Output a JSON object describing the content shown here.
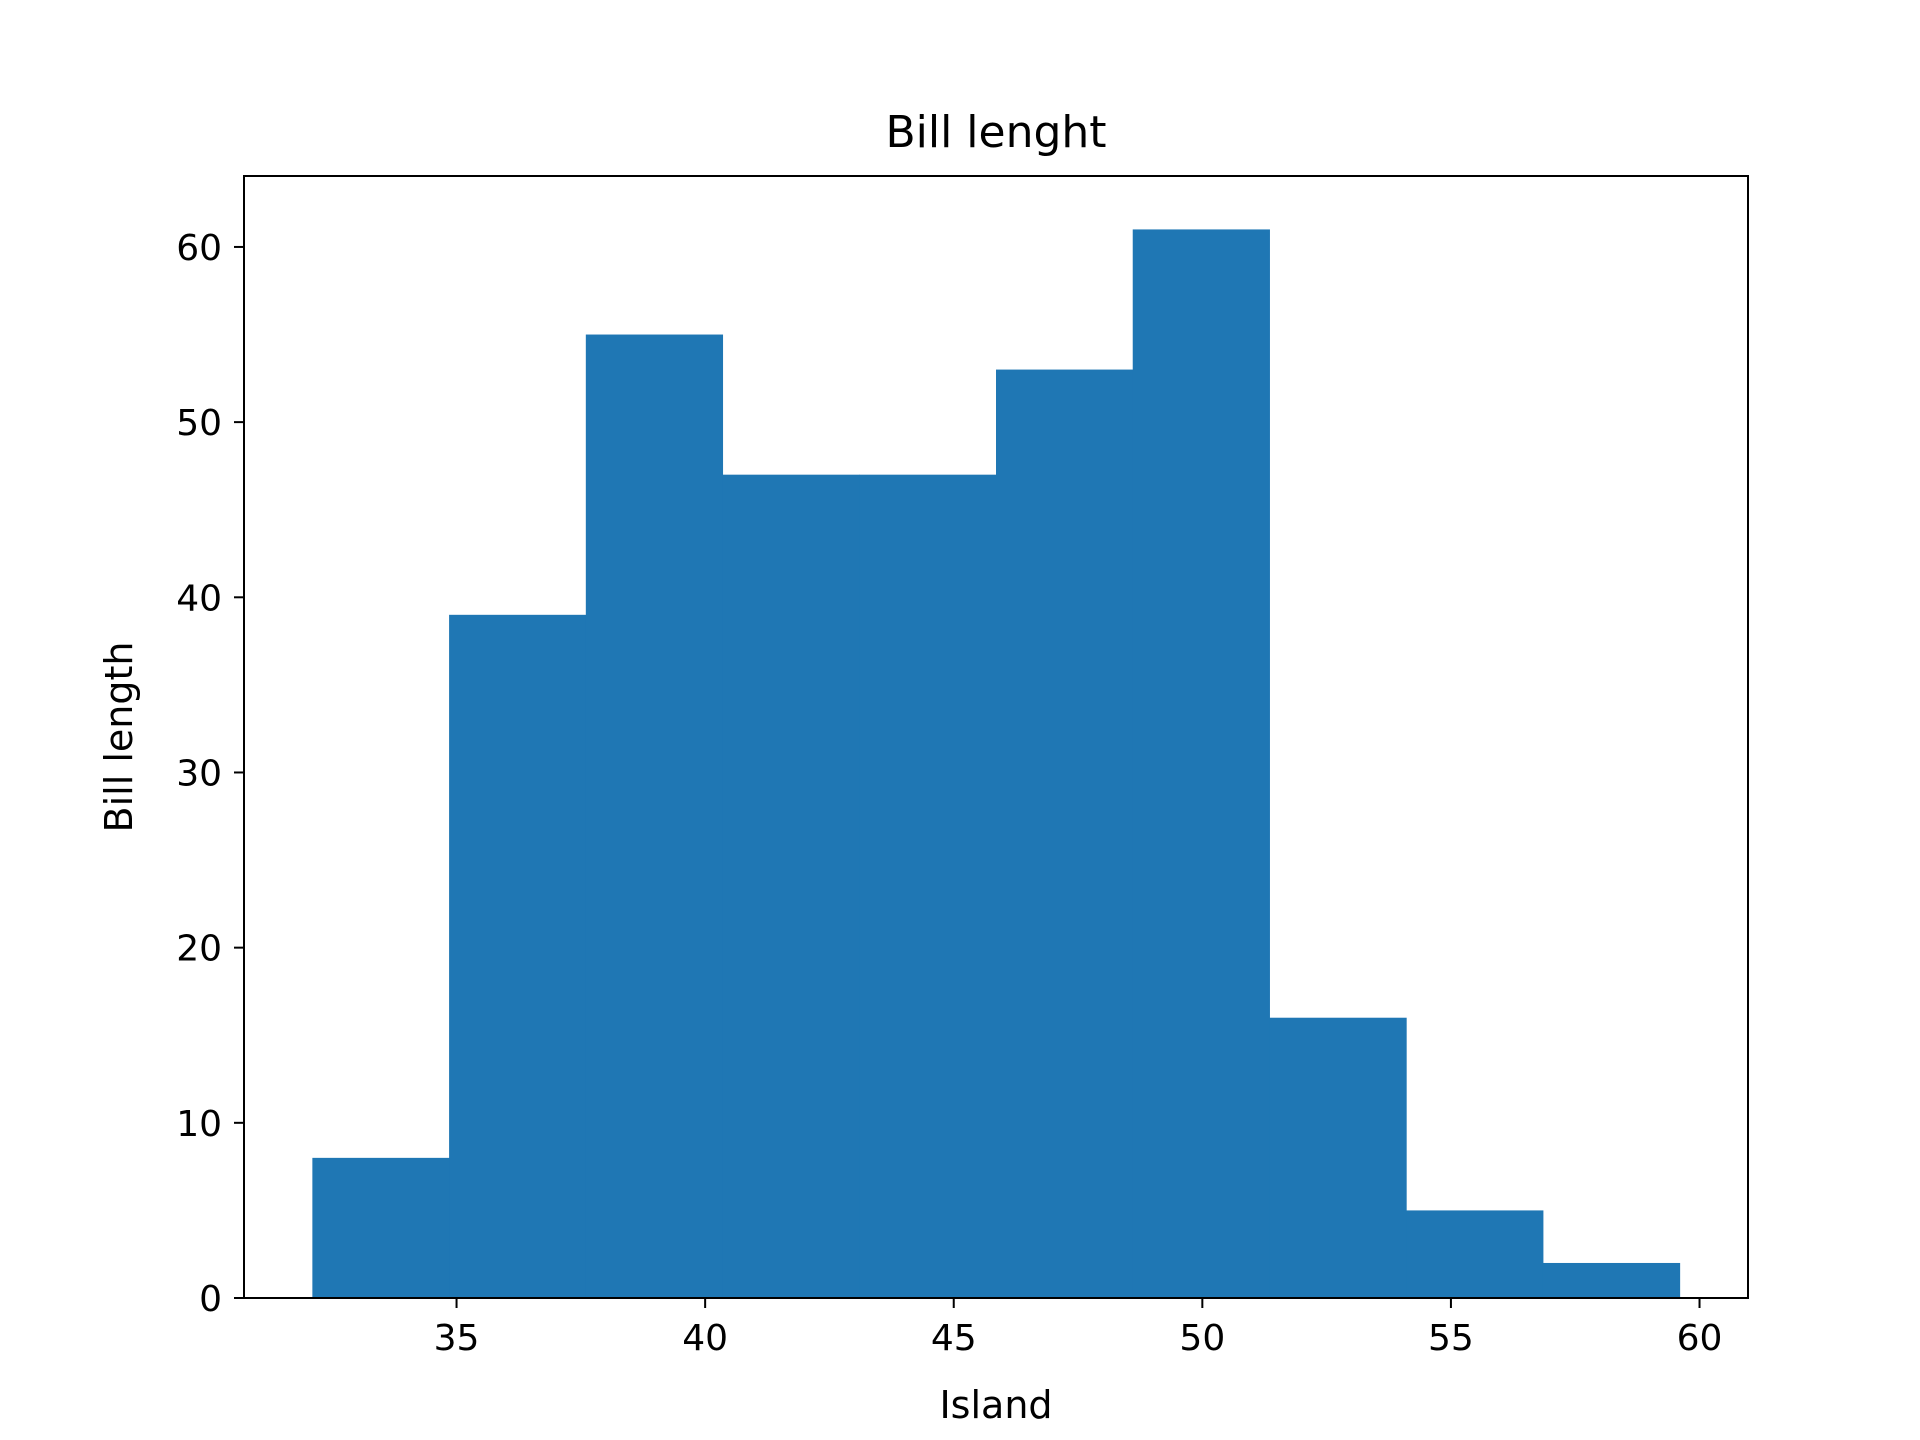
{
  "chart_data": {
    "type": "bar",
    "title": "Bill lenght",
    "xlabel": "Island",
    "ylabel": "Bill length",
    "bin_edges": [
      32.1,
      34.85,
      37.6,
      40.35,
      43.1,
      45.85,
      48.6,
      51.35,
      54.1,
      56.85,
      59.6
    ],
    "values": [
      8,
      39,
      55,
      47,
      47,
      53,
      61,
      16,
      5,
      2
    ],
    "xlim": [
      30.725,
      60.975
    ],
    "ylim": [
      0,
      64.05
    ],
    "xticks": [
      35,
      40,
      45,
      50,
      55,
      60
    ],
    "yticks": [
      0,
      10,
      20,
      30,
      40,
      50,
      60
    ],
    "bar_color": "#1f77b4",
    "grid": false
  }
}
